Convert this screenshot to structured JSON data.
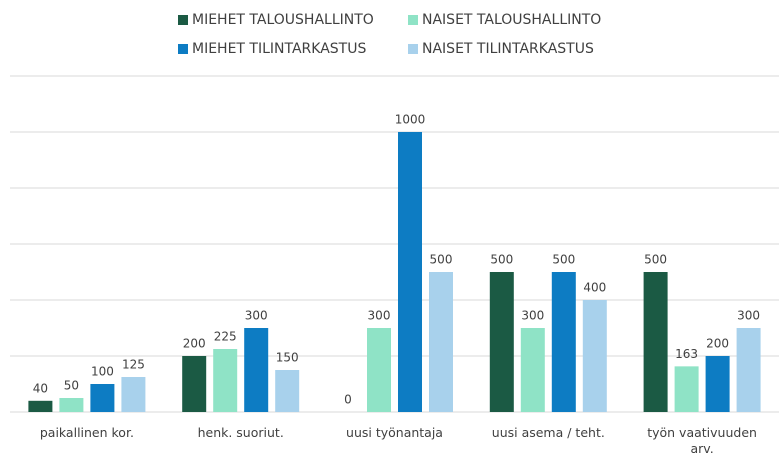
{
  "chart_data": {
    "type": "bar",
    "categories": [
      "paikallinen kor.",
      "henk. suoriut.",
      "uusi työnantaja",
      "uusi asema / teht.",
      "työn vaativuuden arv."
    ],
    "series": [
      {
        "name": "MIEHET TALOUSHALLINTO",
        "color": "#1b5a44",
        "values": [
          40,
          200,
          0,
          500,
          500
        ]
      },
      {
        "name": "NAISET TALOUSHALLINTO",
        "color": "#8fe3c6",
        "values": [
          50,
          225,
          300,
          300,
          163
        ]
      },
      {
        "name": "MIEHET TILINTARKASTUS",
        "color": "#0d7cc3",
        "values": [
          100,
          300,
          1000,
          500,
          200
        ]
      },
      {
        "name": "NAISET TILINTARKASTUS",
        "color": "#a8d1ec",
        "values": [
          125,
          150,
          500,
          400,
          300
        ]
      }
    ],
    "ylim": [
      0,
      1200
    ],
    "yticks": [
      0,
      200,
      400,
      600,
      800,
      1000,
      1200
    ],
    "grid": true,
    "legend": "top"
  }
}
